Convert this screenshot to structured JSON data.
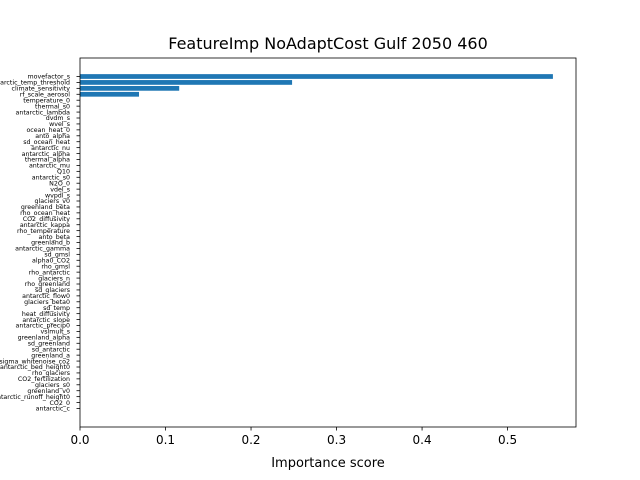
{
  "chart_data": {
    "type": "bar",
    "orientation": "horizontal",
    "title": "FeatureImp NoAdaptCost Gulf 2050 460",
    "xlabel": "Importance score",
    "ylabel": "",
    "xlim": [
      0,
      0.58
    ],
    "xticks": [
      0.0,
      0.1,
      0.2,
      0.3,
      0.4,
      0.5
    ],
    "xtick_labels": [
      "0.0",
      "0.1",
      "0.2",
      "0.3",
      "0.4",
      "0.5"
    ],
    "grid": false,
    "bar_color": "#1f77b4",
    "categories": [
      "movefactor_s",
      "antarctic_temp_threshold",
      "climate_sensitivity",
      "rf_scale_aerosol",
      "temperature_0",
      "thermal_s0",
      "antarctic_lambda",
      "dvdm_s",
      "wvel_s",
      "ocean_heat_0",
      "anto_alpha",
      "sd_ocean_heat",
      "antarctic_nu",
      "antarctic_alpha",
      "thermal_alpha",
      "antarctic_mu",
      "Q10",
      "antarctic_s0",
      "N2O_0",
      "vdel_s",
      "wvpdl_s",
      "glaciers_v0",
      "greenland_beta",
      "rho_ocean_heat",
      "CO2_diffusivity",
      "antarctic_kappa",
      "rho_temperature",
      "anto_beta",
      "greenland_b",
      "antarctic_gamma",
      "sd_gmsl",
      "alpha0_CO2",
      "rho_gmsl",
      "rho_antarctic",
      "glaciers_n",
      "rho_greenland",
      "sd_glaciers",
      "antarctic_flow0",
      "glaciers_beta0",
      "sd_temp",
      "heat_diffusivity",
      "antarctic_slope",
      "antarctic_precip0",
      "vslmult_s",
      "greenland_alpha",
      "sd_greenland",
      "sd_antarctic",
      "greenland_a",
      "sigma_whitenoise_co2",
      "antarctic_bed_height0",
      "rho_glaciers",
      "CO2_fertilization",
      "glaciers_s0",
      "greenland_v0",
      "antarctic_runoff_height0",
      "CO2_0",
      "antarctic_c"
    ],
    "values": [
      0.553,
      0.248,
      0.116,
      0.069,
      0,
      0,
      0,
      0,
      0,
      0,
      0,
      0,
      0,
      0,
      0,
      0,
      0,
      0,
      0,
      0,
      0,
      0,
      0,
      0,
      0,
      0,
      0,
      0,
      0,
      0,
      0,
      0,
      0,
      0,
      0,
      0,
      0,
      0,
      0,
      0,
      0,
      0,
      0,
      0,
      0,
      0,
      0,
      0,
      0,
      0,
      0,
      0,
      0,
      0,
      0,
      0,
      0
    ]
  }
}
